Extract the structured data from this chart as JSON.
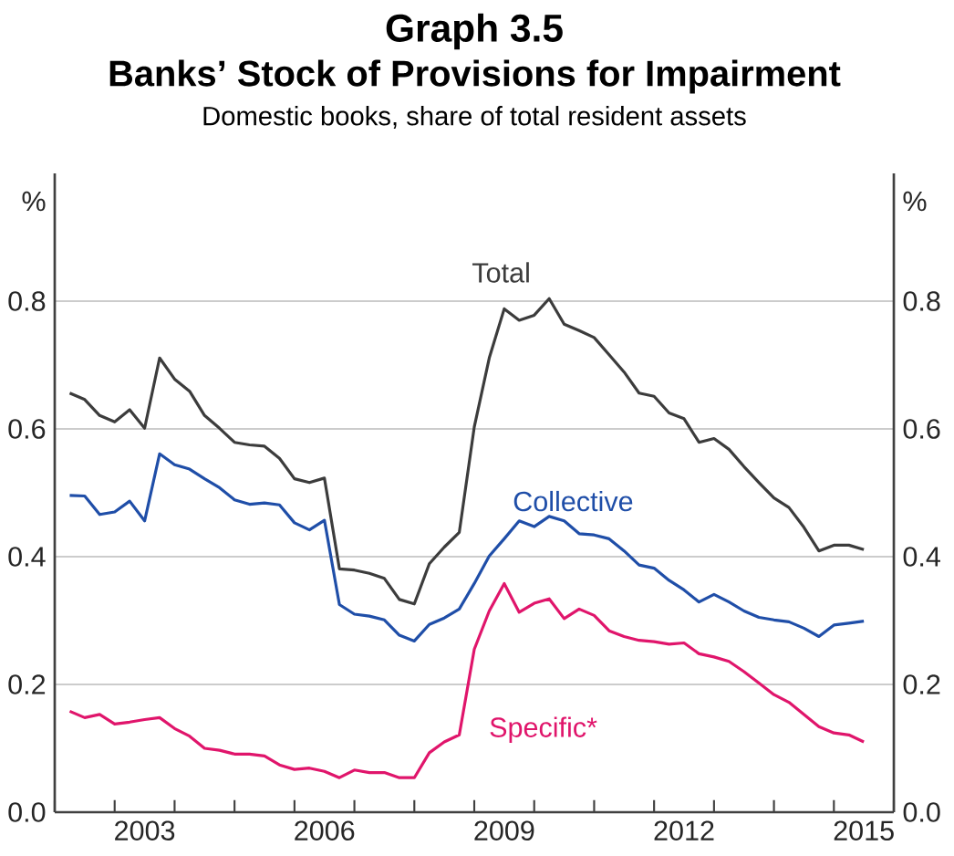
{
  "chart_data": {
    "type": "line",
    "title": "Graph 3.5",
    "subtitle": "Banks’ Stock of Provisions for Impairment",
    "annotations": [
      "Domestic books, share of total resident assets"
    ],
    "ylabel": "%",
    "y2label": "%",
    "x": [
      2002.25,
      2002.5,
      2002.75,
      2003,
      2003.25,
      2003.5,
      2003.75,
      2004,
      2004.25,
      2004.5,
      2004.75,
      2005,
      2005.25,
      2005.5,
      2005.75,
      2006,
      2006.25,
      2006.5,
      2006.75,
      2007,
      2007.25,
      2007.5,
      2007.75,
      2008,
      2008.25,
      2008.5,
      2008.75,
      2009,
      2009.25,
      2009.5,
      2009.75,
      2010,
      2010.25,
      2010.5,
      2010.75,
      2011,
      2011.25,
      2011.5,
      2011.75,
      2012,
      2012.25,
      2012.5,
      2012.75,
      2013,
      2013.25,
      2013.5,
      2013.75,
      2014,
      2014.25,
      2014.5,
      2014.75,
      2015,
      2015.25,
      2015.5
    ],
    "series": [
      {
        "name": "Total",
        "color": "#3c3c3c",
        "values": [
          0.656,
          0.646,
          0.621,
          0.611,
          0.63,
          0.601,
          0.711,
          0.678,
          0.659,
          0.621,
          0.601,
          0.579,
          0.575,
          0.573,
          0.554,
          0.522,
          0.516,
          0.523,
          0.381,
          0.379,
          0.374,
          0.366,
          0.333,
          0.326,
          0.389,
          0.415,
          0.438,
          0.603,
          0.711,
          0.788,
          0.77,
          0.778,
          0.804,
          0.764,
          0.754,
          0.743,
          0.716,
          0.689,
          0.656,
          0.651,
          0.625,
          0.616,
          0.579,
          0.585,
          0.568,
          0.541,
          0.516,
          0.492,
          0.477,
          0.446,
          0.409,
          0.418,
          0.418,
          0.411
        ]
      },
      {
        "name": "Collective",
        "color": "#1f4ea8",
        "values": [
          0.496,
          0.495,
          0.466,
          0.47,
          0.487,
          0.456,
          0.561,
          0.544,
          0.537,
          0.522,
          0.508,
          0.489,
          0.482,
          0.484,
          0.481,
          0.453,
          0.442,
          0.457,
          0.325,
          0.31,
          0.307,
          0.301,
          0.277,
          0.268,
          0.294,
          0.304,
          0.318,
          0.358,
          0.401,
          0.428,
          0.456,
          0.447,
          0.463,
          0.456,
          0.436,
          0.434,
          0.428,
          0.409,
          0.387,
          0.382,
          0.363,
          0.348,
          0.329,
          0.341,
          0.329,
          0.315,
          0.305,
          0.301,
          0.298,
          0.288,
          0.275,
          0.293,
          0.296,
          0.299
        ]
      },
      {
        "name": "Specific*",
        "color": "#e0156b",
        "values": [
          0.158,
          0.148,
          0.153,
          0.138,
          0.141,
          0.145,
          0.148,
          0.131,
          0.119,
          0.1,
          0.097,
          0.091,
          0.091,
          0.088,
          0.074,
          0.067,
          0.069,
          0.064,
          0.054,
          0.066,
          0.062,
          0.062,
          0.054,
          0.054,
          0.093,
          0.11,
          0.121,
          0.255,
          0.315,
          0.358,
          0.313,
          0.327,
          0.334,
          0.303,
          0.318,
          0.308,
          0.284,
          0.275,
          0.269,
          0.267,
          0.263,
          0.265,
          0.248,
          0.243,
          0.236,
          0.22,
          0.202,
          0.184,
          0.172,
          0.153,
          0.134,
          0.124,
          0.121,
          0.11
        ]
      }
    ],
    "xlim": [
      2002,
      2016
    ],
    "xticks": [
      {
        "value": 2002,
        "label": null
      },
      {
        "value": 2003,
        "label": null
      },
      {
        "value": 2003.5,
        "label": "2003"
      },
      {
        "value": 2004,
        "label": null
      },
      {
        "value": 2005,
        "label": null
      },
      {
        "value": 2006,
        "label": null
      },
      {
        "value": 2006.5,
        "label": "2006"
      },
      {
        "value": 2007,
        "label": null
      },
      {
        "value": 2008,
        "label": null
      },
      {
        "value": 2009,
        "label": null
      },
      {
        "value": 2009.5,
        "label": "2009"
      },
      {
        "value": 2010,
        "label": null
      },
      {
        "value": 2011,
        "label": null
      },
      {
        "value": 2012,
        "label": null
      },
      {
        "value": 2012.5,
        "label": "2012"
      },
      {
        "value": 2013,
        "label": null
      },
      {
        "value": 2014,
        "label": null
      },
      {
        "value": 2015,
        "label": null
      },
      {
        "value": 2015.5,
        "label": "2015"
      },
      {
        "value": 2016,
        "label": null
      }
    ],
    "ylim": [
      0,
      1
    ],
    "yticks": [
      {
        "value": 0,
        "label": "0.0"
      },
      {
        "value": 0.2,
        "label": "0.2"
      },
      {
        "value": 0.4,
        "label": "0.4"
      },
      {
        "value": 0.6,
        "label": "0.6"
      },
      {
        "value": 0.8,
        "label": "0.8"
      }
    ],
    "y2lim": [
      0,
      1
    ],
    "y2ticks": [
      {
        "value": 0,
        "label": "0.0"
      },
      {
        "value": 0.2,
        "label": "0.2"
      },
      {
        "value": 0.4,
        "label": "0.4"
      },
      {
        "value": 0.6,
        "label": "0.6"
      },
      {
        "value": 0.8,
        "label": "0.8"
      }
    ],
    "grid": "y",
    "legend": false,
    "marker": "none",
    "line_style": "solid"
  }
}
